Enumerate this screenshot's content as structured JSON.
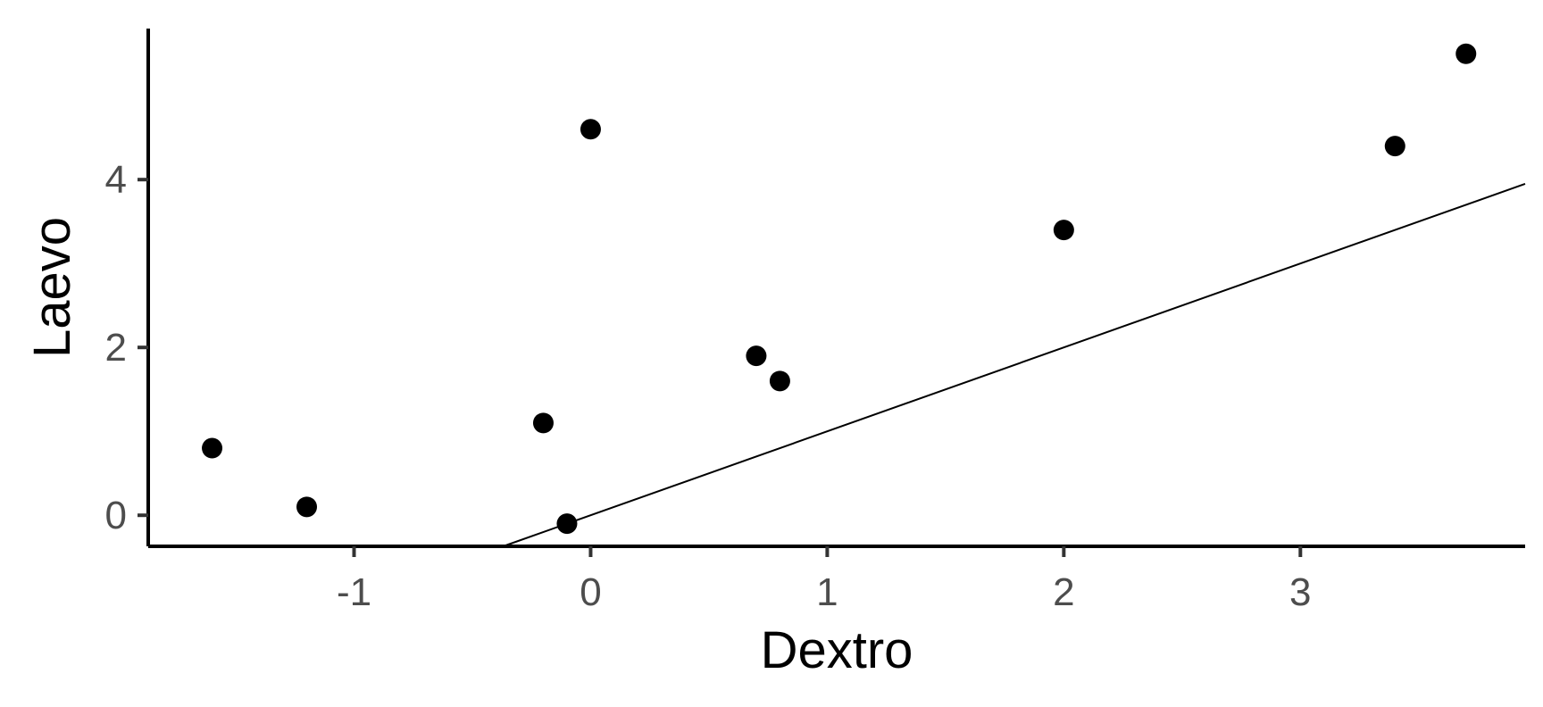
{
  "chart_data": {
    "type": "scatter",
    "title": "",
    "xlabel": "Dextro",
    "ylabel": "Laevo",
    "xlim": [
      -1.87,
      3.95
    ],
    "ylim": [
      -0.37,
      5.8
    ],
    "x_ticks": [
      -1,
      0,
      1,
      2,
      3
    ],
    "y_ticks": [
      0,
      2,
      4
    ],
    "grid": false,
    "legend": "none",
    "points": [
      {
        "x": -1.6,
        "y": 0.8
      },
      {
        "x": -1.2,
        "y": 0.1
      },
      {
        "x": -0.2,
        "y": 1.1
      },
      {
        "x": -0.1,
        "y": -0.1
      },
      {
        "x": 0.0,
        "y": 4.6
      },
      {
        "x": 0.7,
        "y": 1.9
      },
      {
        "x": 0.8,
        "y": 1.6
      },
      {
        "x": 2.0,
        "y": 3.4
      },
      {
        "x": 3.4,
        "y": 4.4
      },
      {
        "x": 3.7,
        "y": 5.5
      }
    ],
    "reference_line": {
      "type": "abline",
      "intercept": 0.0,
      "slope": 1.0
    },
    "colors": {
      "points": "#000000",
      "line": "#000000",
      "axis": "#000000",
      "tick_label": "#4d4d4d"
    }
  }
}
